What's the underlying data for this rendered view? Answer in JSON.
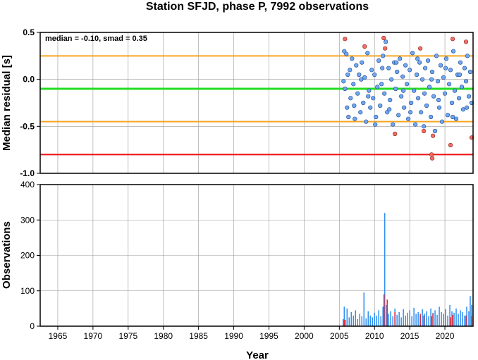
{
  "chart_data": [
    {
      "type": "scatter",
      "title": "Station SFJD, phase P, 7992 observations",
      "ylabel": "Median residual [s]",
      "annotation": "median = -0.10, smad = 0.35",
      "xlim": [
        1962.5,
        2024.0
      ],
      "ylim": [
        -1.0,
        0.5
      ],
      "yticks": [
        "0.5",
        "0.0",
        "-0.5",
        "-1.0"
      ],
      "hlines": [
        {
          "y": 0.25,
          "color": "#f5a623"
        },
        {
          "y": -0.1,
          "color": "#22dd22"
        },
        {
          "y": -0.45,
          "color": "#f5a623"
        },
        {
          "y": -0.8,
          "color": "#ee1111"
        }
      ],
      "colors": {
        "normal": "#6fa8f0",
        "outlier": "#f07060"
      },
      "points": [
        [
          2005.6,
          -0.02
        ],
        [
          2005.7,
          0.3
        ],
        [
          2005.8,
          -0.1
        ],
        [
          2006.0,
          0.27
        ],
        [
          2006.1,
          -0.3
        ],
        [
          2006.3,
          -0.4
        ],
        [
          2006.5,
          0.1
        ],
        [
          2006.6,
          -0.2
        ],
        [
          2006.8,
          0.22
        ],
        [
          2007.0,
          -0.05
        ],
        [
          2007.2,
          -0.42
        ],
        [
          2007.4,
          0.15
        ],
        [
          2007.6,
          -0.15
        ],
        [
          2007.8,
          0.05
        ],
        [
          2008.0,
          -0.35
        ],
        [
          2008.2,
          0.18
        ],
        [
          2008.4,
          -0.25
        ],
        [
          2008.6,
          0.02
        ],
        [
          2008.8,
          -0.45
        ],
        [
          2009.0,
          0.28
        ],
        [
          2009.2,
          -0.12
        ],
        [
          2009.4,
          -0.3
        ],
        [
          2009.6,
          0.1
        ],
        [
          2009.8,
          -0.2
        ],
        [
          2010.0,
          0.05
        ],
        [
          2010.2,
          -0.4
        ],
        [
          2010.4,
          -0.08
        ],
        [
          2010.6,
          0.2
        ],
        [
          2010.8,
          -0.28
        ],
        [
          2011.0,
          -0.05
        ],
        [
          2011.2,
          0.25
        ],
        [
          2011.4,
          -0.15
        ],
        [
          2011.6,
          0.4
        ],
        [
          2011.8,
          -0.35
        ],
        [
          2012.0,
          0.12
        ],
        [
          2012.2,
          -0.22
        ],
        [
          2012.4,
          0.0
        ],
        [
          2012.6,
          -0.48
        ],
        [
          2012.8,
          0.18
        ],
        [
          2013.0,
          -0.1
        ],
        [
          2013.2,
          0.08
        ],
        [
          2013.4,
          -0.38
        ],
        [
          2013.6,
          0.22
        ],
        [
          2013.8,
          -0.18
        ],
        [
          2014.0,
          0.03
        ],
        [
          2014.2,
          -0.3
        ],
        [
          2014.4,
          0.15
        ],
        [
          2014.6,
          -0.05
        ],
        [
          2014.8,
          -0.42
        ],
        [
          2015.0,
          0.1
        ],
        [
          2015.2,
          -0.25
        ],
        [
          2015.4,
          0.28
        ],
        [
          2015.6,
          -0.12
        ],
        [
          2015.8,
          -0.48
        ],
        [
          2016.0,
          0.05
        ],
        [
          2016.2,
          -0.2
        ],
        [
          2016.4,
          0.18
        ],
        [
          2016.6,
          -0.35
        ],
        [
          2016.8,
          0.0
        ],
        [
          2017.0,
          -0.5
        ],
        [
          2017.2,
          0.12
        ],
        [
          2017.4,
          -0.28
        ],
        [
          2017.6,
          0.2
        ],
        [
          2017.8,
          -0.08
        ],
        [
          2018.0,
          -0.4
        ],
        [
          2018.2,
          0.08
        ],
        [
          2018.4,
          -0.18
        ],
        [
          2018.6,
          -0.55
        ],
        [
          2018.8,
          0.25
        ],
        [
          2019.0,
          -0.02
        ],
        [
          2019.2,
          -0.3
        ],
        [
          2019.4,
          0.15
        ],
        [
          2019.6,
          -0.45
        ],
        [
          2019.8,
          0.02
        ],
        [
          2020.0,
          -0.15
        ],
        [
          2020.2,
          0.22
        ],
        [
          2020.4,
          -0.38
        ],
        [
          2020.6,
          -0.05
        ],
        [
          2020.8,
          0.1
        ],
        [
          2021.0,
          -0.25
        ],
        [
          2021.2,
          0.3
        ],
        [
          2021.4,
          -0.12
        ],
        [
          2021.6,
          -0.42
        ],
        [
          2021.8,
          0.05
        ],
        [
          2022.0,
          -0.2
        ],
        [
          2022.2,
          0.18
        ],
        [
          2022.4,
          -0.08
        ],
        [
          2022.6,
          -0.32
        ],
        [
          2022.8,
          0.12
        ],
        [
          2023.0,
          -0.02
        ],
        [
          2023.2,
          0.25
        ],
        [
          2023.4,
          -0.18
        ],
        [
          2023.6,
          0.08
        ],
        [
          2023.8,
          -0.25
        ],
        [
          2006.2,
          0.05
        ],
        [
          2007.1,
          -0.28
        ],
        [
          2008.1,
          0.0
        ],
        [
          2009.1,
          -0.18
        ],
        [
          2010.1,
          -0.48
        ],
        [
          2011.1,
          0.12
        ],
        [
          2012.1,
          -0.32
        ],
        [
          2013.1,
          0.18
        ],
        [
          2014.1,
          -0.12
        ],
        [
          2015.1,
          -0.35
        ],
        [
          2016.1,
          0.22
        ],
        [
          2017.1,
          -0.15
        ],
        [
          2018.1,
          0.0
        ],
        [
          2019.1,
          -0.22
        ],
        [
          2020.1,
          0.12
        ],
        [
          2021.1,
          -0.4
        ],
        [
          2022.1,
          0.05
        ],
        [
          2023.1,
          -0.3
        ]
      ],
      "outliers": [
        [
          2005.8,
          0.43
        ],
        [
          2008.6,
          0.35
        ],
        [
          2011.3,
          0.44
        ],
        [
          2011.5,
          0.33
        ],
        [
          2012.9,
          -0.58
        ],
        [
          2016.5,
          0.33
        ],
        [
          2017.0,
          -0.55
        ],
        [
          2018.1,
          -0.8
        ],
        [
          2018.2,
          -0.84
        ],
        [
          2018.3,
          -0.6
        ],
        [
          2020.8,
          -0.7
        ],
        [
          2021.1,
          0.43
        ],
        [
          2023.0,
          0.4
        ],
        [
          2023.8,
          -0.62
        ]
      ]
    },
    {
      "type": "bar",
      "xlabel": "Year",
      "ylabel": "Observations",
      "xlim": [
        1962.5,
        2024.0
      ],
      "ylim": [
        0,
        400
      ],
      "yticks": [
        "400",
        "300",
        "200",
        "100",
        "0"
      ],
      "xticks": [
        "1965",
        "1970",
        "1975",
        "1980",
        "1985",
        "1990",
        "1995",
        "2000",
        "2005",
        "2010",
        "2015",
        "2020"
      ],
      "colors": {
        "normal": "#2f8ff0",
        "outlier": "#e8202a"
      },
      "bars": [
        [
          2005.55,
          20
        ],
        [
          2005.7,
          55
        ],
        [
          2005.9,
          18
        ],
        [
          2006.1,
          50
        ],
        [
          2006.4,
          25
        ],
        [
          2006.7,
          40
        ],
        [
          2007.0,
          30
        ],
        [
          2007.3,
          45
        ],
        [
          2007.6,
          20
        ],
        [
          2007.9,
          35
        ],
        [
          2008.2,
          28
        ],
        [
          2008.5,
          95
        ],
        [
          2008.8,
          22
        ],
        [
          2009.1,
          42
        ],
        [
          2009.4,
          30
        ],
        [
          2009.7,
          25
        ],
        [
          2010.0,
          38
        ],
        [
          2010.3,
          30
        ],
        [
          2010.6,
          45
        ],
        [
          2010.9,
          28
        ],
        [
          2011.2,
          55
        ],
        [
          2011.45,
          320
        ],
        [
          2011.7,
          60
        ],
        [
          2012.0,
          35
        ],
        [
          2012.3,
          42
        ],
        [
          2012.6,
          28
        ],
        [
          2012.9,
          50
        ],
        [
          2013.2,
          32
        ],
        [
          2013.5,
          40
        ],
        [
          2013.8,
          25
        ],
        [
          2014.1,
          48
        ],
        [
          2014.4,
          30
        ],
        [
          2014.7,
          38
        ],
        [
          2015.0,
          45
        ],
        [
          2015.3,
          28
        ],
        [
          2015.6,
          52
        ],
        [
          2015.9,
          35
        ],
        [
          2016.2,
          40
        ],
        [
          2016.5,
          30
        ],
        [
          2016.8,
          48
        ],
        [
          2017.1,
          35
        ],
        [
          2017.4,
          42
        ],
        [
          2017.7,
          28
        ],
        [
          2018.0,
          50
        ],
        [
          2018.3,
          38
        ],
        [
          2018.6,
          45
        ],
        [
          2018.9,
          32
        ],
        [
          2019.2,
          55
        ],
        [
          2019.5,
          40
        ],
        [
          2019.8,
          35
        ],
        [
          2020.1,
          48
        ],
        [
          2020.4,
          30
        ],
        [
          2020.7,
          60
        ],
        [
          2021.0,
          42
        ],
        [
          2021.3,
          38
        ],
        [
          2021.6,
          50
        ],
        [
          2021.9,
          35
        ],
        [
          2022.2,
          45
        ],
        [
          2022.5,
          40
        ],
        [
          2022.8,
          30
        ],
        [
          2023.1,
          55
        ],
        [
          2023.4,
          42
        ],
        [
          2023.6,
          85
        ],
        [
          2023.8,
          60
        ]
      ],
      "outlier_bars": [
        [
          2005.7,
          18
        ],
        [
          2011.35,
          90
        ],
        [
          2011.8,
          75
        ],
        [
          2012.9,
          40
        ],
        [
          2016.5,
          35
        ],
        [
          2017.0,
          30
        ],
        [
          2018.1,
          28
        ],
        [
          2018.3,
          35
        ],
        [
          2020.8,
          25
        ],
        [
          2021.1,
          32
        ],
        [
          2023.0,
          30
        ],
        [
          2023.8,
          28
        ]
      ]
    }
  ]
}
